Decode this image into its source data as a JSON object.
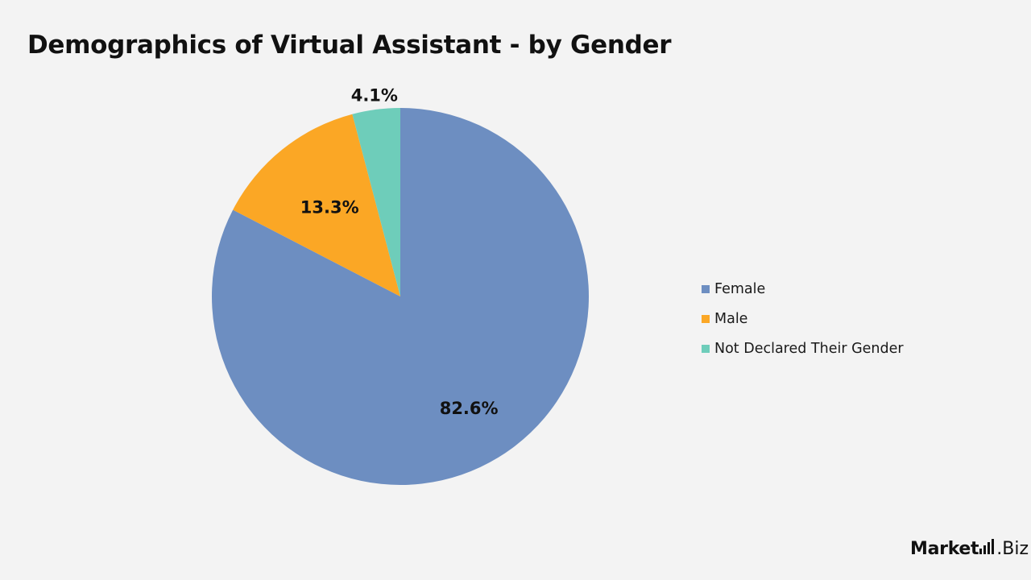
{
  "header": {
    "title": "Demographics of Virtual Assistant - by Gender"
  },
  "chart_data": {
    "type": "pie",
    "title": "Demographics of Virtual Assistant - by Gender",
    "categories": [
      "Female",
      "Male",
      "Not Declared Their Gender"
    ],
    "values": [
      82.6,
      13.3,
      4.1
    ],
    "labels": [
      "82.6%",
      "13.3%",
      "4.1%"
    ],
    "colors": [
      "#6d8ec1",
      "#fba725",
      "#6ecdba"
    ],
    "legend_position": "right"
  },
  "legend": {
    "items": [
      {
        "label": "Female",
        "color": "#6d8ec1"
      },
      {
        "label": "Male",
        "color": "#fba725"
      },
      {
        "label": "Not Declared Their Gender",
        "color": "#6ecdba"
      }
    ]
  },
  "brand": {
    "main": "Market",
    "tail": ".Biz"
  }
}
